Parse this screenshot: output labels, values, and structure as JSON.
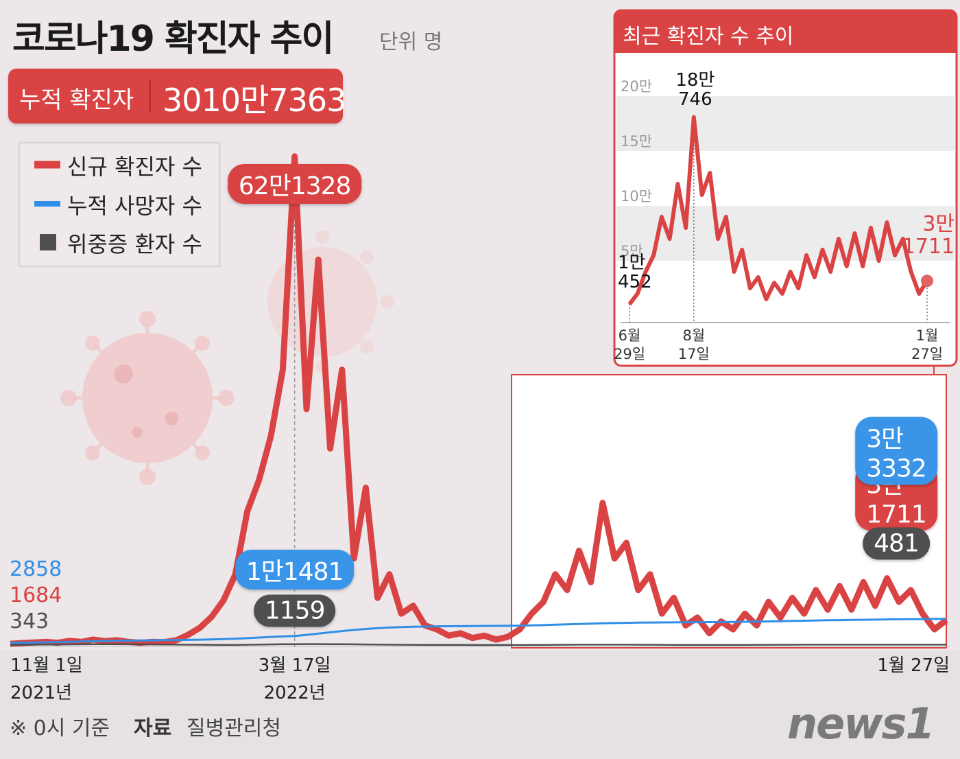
{
  "header": {
    "title": "코로나19 확진자 추이",
    "unit": "단위 명"
  },
  "total": {
    "label": "누적 확진자",
    "value": "3010만7363"
  },
  "chart_data": [
    {
      "type": "line",
      "categories": [
        "11월 1일\n2021년",
        null,
        null,
        null,
        null,
        null,
        null,
        null,
        null,
        null,
        null,
        null,
        null,
        null,
        null,
        null,
        null,
        null,
        null,
        null,
        null,
        null,
        null,
        null,
        "3월 17일\n2022년",
        null,
        null,
        null,
        null,
        null,
        null,
        null,
        null,
        null,
        null,
        null,
        null,
        null,
        null,
        null,
        null,
        null,
        null,
        null,
        null,
        null,
        null,
        null,
        null,
        null,
        null,
        null,
        null,
        null,
        null,
        null,
        null,
        null,
        null,
        null,
        null,
        null,
        null,
        null,
        null,
        null,
        null,
        null,
        null,
        null,
        null,
        null,
        null,
        null,
        null,
        null,
        null,
        null,
        null,
        "1월 27일"
      ],
      "series": [
        {
          "name": "신규 확진자 수",
          "color": "#d94343",
          "values": [
            1684,
            2500,
            3200,
            4000,
            3000,
            5300,
            4000,
            7000,
            5000,
            6200,
            4000,
            3000,
            4200,
            3800,
            6000,
            13000,
            22000,
            36000,
            57000,
            90000,
            170000,
            210000,
            266000,
            350000,
            621328,
            300000,
            490000,
            250000,
            350000,
            110000,
            200000,
            60000,
            90000,
            40000,
            50000,
            25000,
            20000,
            12000,
            15000,
            9000,
            12000,
            7000,
            10452,
            20000,
            40000,
            55000,
            90000,
            70000,
            120000,
            80000,
            180746,
            110000,
            130000,
            70000,
            90000,
            40000,
            60000,
            25000,
            35000,
            15000,
            30000,
            20000,
            40000,
            25000,
            55000,
            35000,
            60000,
            40000,
            70000,
            45000,
            75000,
            45000,
            80000,
            50000,
            85000,
            55000,
            70000,
            40000,
            20000,
            31711
          ],
          "value_labels": [
            null,
            null,
            null,
            null,
            null,
            null,
            null,
            null,
            null,
            null,
            null,
            null,
            null,
            null,
            null,
            null,
            null,
            null,
            null,
            null,
            null,
            null,
            null,
            null,
            "62만1328",
            null,
            null,
            null,
            null,
            null,
            null,
            null,
            null,
            null,
            null,
            null,
            null,
            null,
            null,
            null,
            null,
            null,
            null,
            null,
            null,
            null,
            null,
            null,
            null,
            null,
            null,
            null,
            null,
            null,
            null,
            null,
            null,
            null,
            null,
            null,
            null,
            null,
            null,
            null,
            null,
            null,
            null,
            null,
            null,
            null,
            null,
            null,
            null,
            null,
            null,
            null,
            null,
            null,
            null,
            "3만1711"
          ]
        },
        {
          "name": "누적 사망자 수",
          "color": "#2f8fe6",
          "values": [
            2858,
            3050,
            3300,
            3550,
            3850,
            4200,
            4550,
            4900,
            5200,
            5450,
            5650,
            5850,
            6050,
            6250,
            6450,
            6650,
            6900,
            7200,
            7600,
            8100,
            8800,
            9600,
            10400,
            11000,
            11481,
            13000,
            14600,
            16200,
            17800,
            19300,
            20500,
            21500,
            22300,
            22900,
            23300,
            23600,
            23800,
            24000,
            24100,
            24200,
            24300,
            24400,
            24500,
            24700,
            25000,
            25400,
            25900,
            26400,
            26900,
            27300,
            27700,
            28000,
            28300,
            28500,
            28700,
            28800,
            28900,
            29000,
            29100,
            29200,
            29300,
            29500,
            29700,
            29900,
            30100,
            30400,
            30700,
            31000,
            31300,
            31600,
            31800,
            32000,
            32200,
            32400,
            32600,
            32800,
            33000,
            33100,
            33200,
            33332
          ],
          "value_labels": [
            null,
            null,
            null,
            null,
            null,
            null,
            null,
            null,
            null,
            null,
            null,
            null,
            null,
            null,
            null,
            null,
            null,
            null,
            null,
            null,
            null,
            null,
            null,
            null,
            "1만1481",
            null,
            null,
            null,
            null,
            null,
            null,
            null,
            null,
            null,
            null,
            null,
            null,
            null,
            null,
            null,
            null,
            null,
            null,
            null,
            null,
            null,
            null,
            null,
            null,
            null,
            null,
            null,
            null,
            null,
            null,
            null,
            null,
            null,
            null,
            null,
            null,
            null,
            null,
            null,
            null,
            null,
            null,
            null,
            null,
            null,
            null,
            null,
            null,
            null,
            null,
            null,
            null,
            null,
            null,
            "3만3332"
          ]
        },
        {
          "name": "위중증 환자 수",
          "color": "#4f4f4f",
          "values": [
            343,
            420,
            500,
            600,
            720,
            850,
            950,
            1050,
            1080,
            1050,
            1000,
            900,
            800,
            700,
            600,
            500,
            420,
            350,
            300,
            300,
            420,
            600,
            850,
            1050,
            1159,
            1200,
            1250,
            1150,
            1050,
            950,
            800,
            650,
            500,
            400,
            320,
            250,
            200,
            180,
            150,
            130,
            110,
            100,
            100,
            120,
            180,
            250,
            350,
            420,
            500,
            550,
            560,
            540,
            500,
            450,
            400,
            350,
            300,
            280,
            260,
            250,
            250,
            270,
            300,
            340,
            380,
            420,
            460,
            500,
            520,
            540,
            550,
            540,
            530,
            520,
            510,
            500,
            495,
            490,
            485,
            481
          ]
        }
      ],
      "ylim": [
        0,
        650000
      ],
      "legend": "top-left"
    },
    {
      "type": "line",
      "title": "최근 확진자 수 추이",
      "categories": [
        "6월\n29일",
        null,
        null,
        null,
        null,
        null,
        null,
        null,
        "8월\n17일",
        null,
        null,
        null,
        null,
        null,
        null,
        null,
        null,
        null,
        null,
        null,
        null,
        null,
        null,
        null,
        null,
        null,
        null,
        null,
        null,
        null,
        null,
        null,
        null,
        null,
        null,
        null,
        null,
        "1월\n27일"
      ],
      "series": [
        {
          "color": "#d94343",
          "values": [
            10452,
            20000,
            40000,
            55000,
            90000,
            70000,
            120000,
            80000,
            180746,
            110000,
            130000,
            70000,
            90000,
            40000,
            60000,
            25000,
            35000,
            15000,
            30000,
            20000,
            40000,
            25000,
            55000,
            35000,
            60000,
            40000,
            70000,
            45000,
            75000,
            45000,
            80000,
            50000,
            85000,
            55000,
            70000,
            40000,
            20000,
            31711
          ],
          "value_labels": [
            [
              "1만",
              "452"
            ],
            null,
            null,
            null,
            null,
            null,
            null,
            null,
            [
              "18만",
              "746"
            ],
            null,
            null,
            null,
            null,
            null,
            null,
            null,
            null,
            null,
            null,
            null,
            null,
            null,
            null,
            null,
            null,
            null,
            null,
            null,
            null,
            null,
            null,
            null,
            null,
            null,
            null,
            null,
            null,
            [
              "3만",
              "1711"
            ]
          ]
        }
      ],
      "ylim": [
        0,
        200000
      ],
      "yticks": [
        {
          "value": 50000,
          "label": "5만"
        },
        {
          "value": 100000,
          "label": "10만"
        },
        {
          "value": 150000,
          "label": "15만"
        },
        {
          "value": 200000,
          "label": "20만"
        }
      ],
      "grid_bands": true
    }
  ],
  "footer": {
    "note": "※ 0시 기준",
    "source_label": "자료",
    "source": "질병관리청",
    "logo": "news1"
  }
}
